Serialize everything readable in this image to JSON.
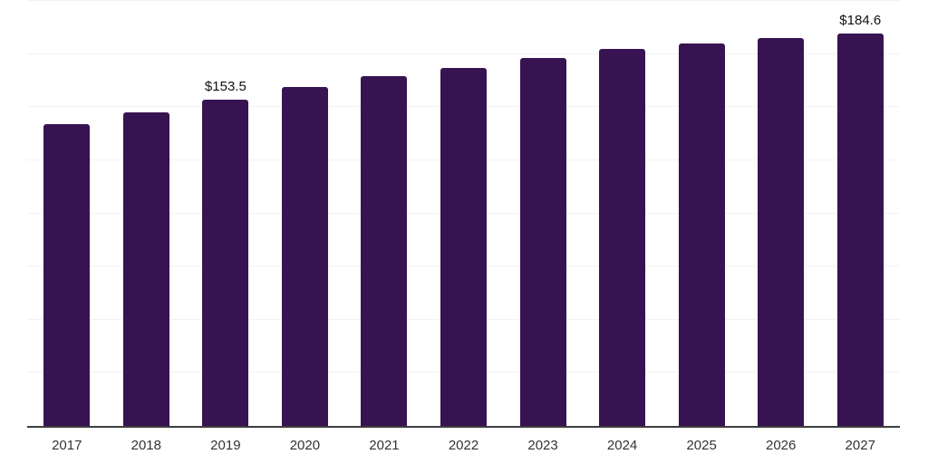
{
  "chart_data": {
    "type": "bar",
    "categories": [
      "2017",
      "2018",
      "2019",
      "2020",
      "2021",
      "2022",
      "2023",
      "2024",
      "2025",
      "2026",
      "2027"
    ],
    "values": [
      142.1,
      147.5,
      153.5,
      159.4,
      164.6,
      168.4,
      173.1,
      177.4,
      180.1,
      182.5,
      184.6
    ],
    "data_labels": [
      {
        "category": "2019",
        "text": "$153.5"
      },
      {
        "category": "2027",
        "text": "$184.6"
      }
    ],
    "title": "",
    "xlabel": "",
    "ylabel": "",
    "ylim": [
      0,
      200
    ],
    "grid_step": 25,
    "grid": true,
    "legend": "none",
    "colors": {
      "bar": "#381352",
      "gridline": "#f2f2f4",
      "axis_line": "#3d3d3d",
      "tick_label": "#333333",
      "data_label": "#111111",
      "background": "#ffffff"
    }
  }
}
